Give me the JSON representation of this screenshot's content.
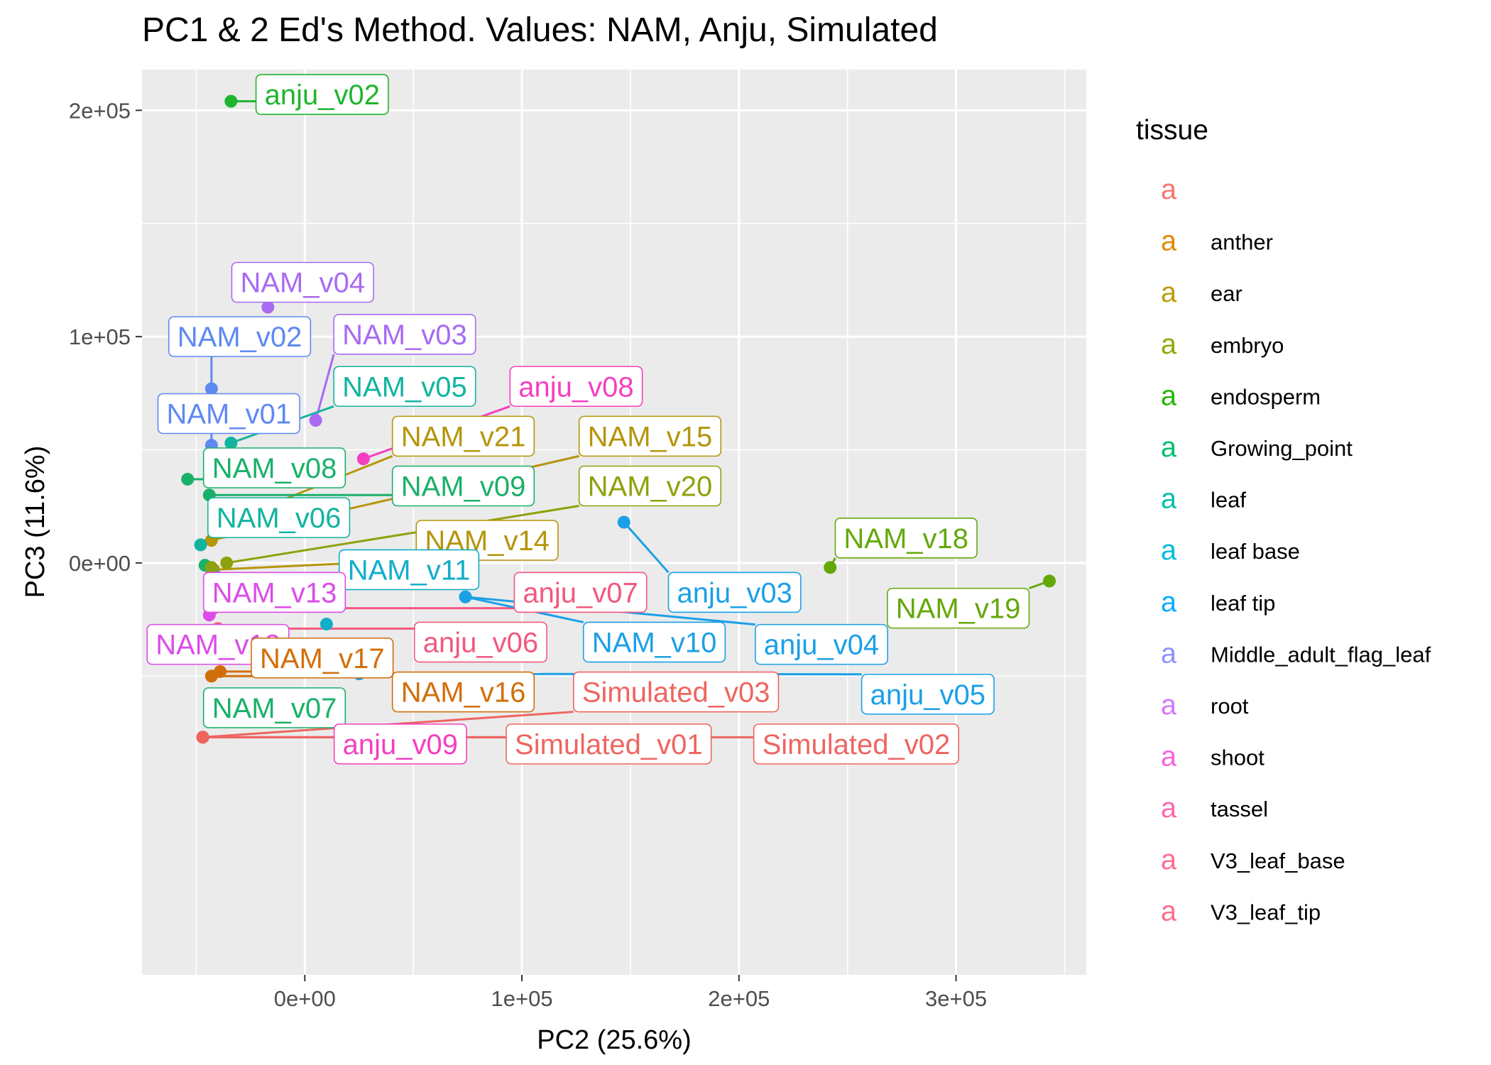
{
  "chart_data": {
    "type": "scatter",
    "title": "PC1 & 2 Ed's Method. Values: NAM, Anju, Simulated",
    "xlabel": "PC2 (25.6%)",
    "ylabel": "PC3 (11.6%)",
    "xlim": [
      -75000,
      360000
    ],
    "ylim": [
      -182000,
      218000
    ],
    "xticks": [
      0,
      100000,
      200000,
      300000
    ],
    "xtick_labels": [
      "0e+00",
      "1e+05",
      "2e+05",
      "3e+05"
    ],
    "yticks": [
      0,
      100000,
      200000
    ],
    "ytick_labels": [
      "0e+00",
      "1e+05",
      "2e+05"
    ],
    "grid": true,
    "legend": {
      "title": "tissue",
      "position": "right",
      "key_glyph": "a",
      "entries": [
        {
          "label": "",
          "color": "#F8766D"
        },
        {
          "label": "anther",
          "color": "#E18A00"
        },
        {
          "label": "ear",
          "color": "#BE9C00"
        },
        {
          "label": "embryo",
          "color": "#8CAB00"
        },
        {
          "label": "endosperm",
          "color": "#24B700"
        },
        {
          "label": "Growing_point",
          "color": "#00BE70"
        },
        {
          "label": "leaf",
          "color": "#00C1AB"
        },
        {
          "label": "leaf base",
          "color": "#00BBDA"
        },
        {
          "label": "leaf tip",
          "color": "#00ACFC"
        },
        {
          "label": "Middle_adult_flag_leaf",
          "color": "#8B93FF"
        },
        {
          "label": "root",
          "color": "#D575FE"
        },
        {
          "label": "shoot",
          "color": "#F962DD"
        },
        {
          "label": "tassel",
          "color": "#FF65AC"
        },
        {
          "label": "V3_leaf_base",
          "color": "#FF6C91"
        },
        {
          "label": "V3_leaf_tip",
          "color": "#FF6C91"
        }
      ]
    },
    "points": [
      {
        "label": "anju_v02",
        "tissue": "endosperm",
        "color": "#1FB52D",
        "x": -34000,
        "y": 204000,
        "label_x": 8000,
        "label_y": 207000
      },
      {
        "label": "NAM_v04",
        "tissue": "shoot",
        "color": "#A86BF2",
        "x": -17000,
        "y": 113000,
        "label_x": -1000,
        "label_y": 124000
      },
      {
        "label": "NAM_v02",
        "tissue": "root",
        "color": "#5F89F2",
        "x": -43000,
        "y": 77000,
        "label_x": -30000,
        "label_y": 100000
      },
      {
        "label": "NAM_v03",
        "tissue": "shoot",
        "color": "#A86BF2",
        "x": 5000,
        "y": 63000,
        "label_x": 46000,
        "label_y": 101000
      },
      {
        "label": "NAM_v05",
        "tissue": "leaf base",
        "color": "#12B4A0",
        "x": -34000,
        "y": 53000,
        "label_x": 46000,
        "label_y": 78000
      },
      {
        "label": "anju_v08",
        "tissue": "V3_leaf_base",
        "color": "#F43FC0",
        "x": 27000,
        "y": 46000,
        "label_x": 125000,
        "label_y": 78000
      },
      {
        "label": "NAM_v01",
        "tissue": "root",
        "color": "#5F89F2",
        "x": -43000,
        "y": 52000,
        "label_x": -35000,
        "label_y": 66000
      },
      {
        "label": "NAM_v21",
        "tissue": "ear",
        "color": "#B5950A",
        "x": -36000,
        "y": 18000,
        "label_x": 73000,
        "label_y": 56000
      },
      {
        "label": "NAM_v15",
        "tissue": "ear",
        "color": "#B5950A",
        "x": -43000,
        "y": 10000,
        "label_x": 159000,
        "label_y": 56000
      },
      {
        "label": "NAM_v08",
        "tissue": "Growing_point",
        "color": "#1BB06A",
        "x": -54000,
        "y": 37000,
        "label_x": -14000,
        "label_y": 42000
      },
      {
        "label": "NAM_v09",
        "tissue": "leaf",
        "color": "#1BB06A",
        "x": -44000,
        "y": 30000,
        "label_x": 73000,
        "label_y": 34000
      },
      {
        "label": "NAM_v20",
        "tissue": "embryo",
        "color": "#8FA10A",
        "x": -36000,
        "y": 0,
        "label_x": 159000,
        "label_y": 34000
      },
      {
        "label": "NAM_v06",
        "tissue": "leaf base",
        "color": "#12B4A0",
        "x": -48000,
        "y": 8000,
        "label_x": -12000,
        "label_y": 20000
      },
      {
        "label": "NAM_v14",
        "tissue": "ear",
        "color": "#B5950A",
        "x": -42000,
        "y": -3000,
        "label_x": 84000,
        "label_y": 10000
      },
      {
        "label": "NAM_v18",
        "tissue": "endosperm",
        "color": "#64A80A",
        "x": 242000,
        "y": -2000,
        "label_x": 277000,
        "label_y": 11000
      },
      {
        "label": "NAM_v19",
        "tissue": "endosperm",
        "color": "#64A80A",
        "x": 343000,
        "y": -8000,
        "label_x": 301000,
        "label_y": -20000
      },
      {
        "label": "anju_v03",
        "tissue": "Middle_adult_flag_leaf",
        "color": "#1BA0E6",
        "x": 147000,
        "y": 18000,
        "label_x": 198000,
        "label_y": -13000
      },
      {
        "label": "NAM_v11",
        "tissue": "leaf tip",
        "color": "#12AEC9",
        "x": -42000,
        "y": -5000,
        "label_x": 48000,
        "label_y": -3000
      },
      {
        "label": "anju_v07",
        "tissue": "V3_leaf_tip",
        "color": "#F2587F",
        "x": -42000,
        "y": -20000,
        "label_x": 127000,
        "label_y": -13000
      },
      {
        "label": "NAM_v13",
        "tissue": "tassel",
        "color": "#DB4CE8",
        "x": -43000,
        "y": -5000,
        "label_x": -14000,
        "label_y": -13000
      },
      {
        "label": "NAM_v10",
        "tissue": "Middle_adult_flag_leaf",
        "color": "#1BA0E6",
        "x": 74000,
        "y": -15000,
        "label_x": 161000,
        "label_y": -35000
      },
      {
        "label": "anju_v04",
        "tissue": "Middle_adult_flag_leaf",
        "color": "#1BA0E6",
        "x": 74000,
        "y": -15000,
        "label_x": 238000,
        "label_y": -36000
      },
      {
        "label": "NAM_v12",
        "tissue": "tassel",
        "color": "#DB4CE8",
        "x": -44000,
        "y": -23000,
        "label_x": -40000,
        "label_y": -36000
      },
      {
        "label": "anju_v06",
        "tissue": "V3_leaf_tip",
        "color": "#F2587F",
        "x": -40000,
        "y": -29000,
        "label_x": 81000,
        "label_y": -35000
      },
      {
        "label": "NAM_v17",
        "tissue": "anther",
        "color": "#D26E0A",
        "x": -39000,
        "y": -48000,
        "label_x": 8000,
        "label_y": -42000
      },
      {
        "label": "NAM_v16",
        "tissue": "anther",
        "color": "#D26E0A",
        "x": -43000,
        "y": -50000,
        "label_x": 73000,
        "label_y": -57000
      },
      {
        "label": "Simulated_v03",
        "tissue": "",
        "color": "#EE6560",
        "x": -47000,
        "y": -77000,
        "label_x": 171000,
        "label_y": -57000
      },
      {
        "label": "anju_v05",
        "tissue": "Middle_adult_flag_leaf",
        "color": "#1BA0E6",
        "x": 25000,
        "y": -49000,
        "label_x": 287000,
        "label_y": -58000
      },
      {
        "label": "NAM_v07",
        "tissue": "Growing_point",
        "color": "#1BB06A",
        "x": -47000,
        "y": -77000,
        "label_x": -14000,
        "label_y": -64000
      },
      {
        "label": "anju_v09",
        "tissue": "V3_leaf_base",
        "color": "#F43FC0",
        "x": -47000,
        "y": -77000,
        "label_x": 44000,
        "label_y": -80000
      },
      {
        "label": "Simulated_v01",
        "tissue": "",
        "color": "#EE6560",
        "x": -47000,
        "y": -77000,
        "label_x": 140000,
        "label_y": -80000
      },
      {
        "label": "Simulated_v02",
        "tissue": "",
        "color": "#EE6560",
        "x": -47000,
        "y": -77000,
        "label_x": 254000,
        "label_y": -80000
      },
      {
        "label": "",
        "tissue": "leaf tip",
        "color": "#12AEC9",
        "x": 10000,
        "y": -27000
      },
      {
        "label": "",
        "tissue": "leaf",
        "color": "#1BB06A",
        "x": -46000,
        "y": -1000
      },
      {
        "label": "",
        "tissue": "embryo",
        "color": "#8FA10A",
        "x": -43000,
        "y": -2000
      }
    ]
  }
}
